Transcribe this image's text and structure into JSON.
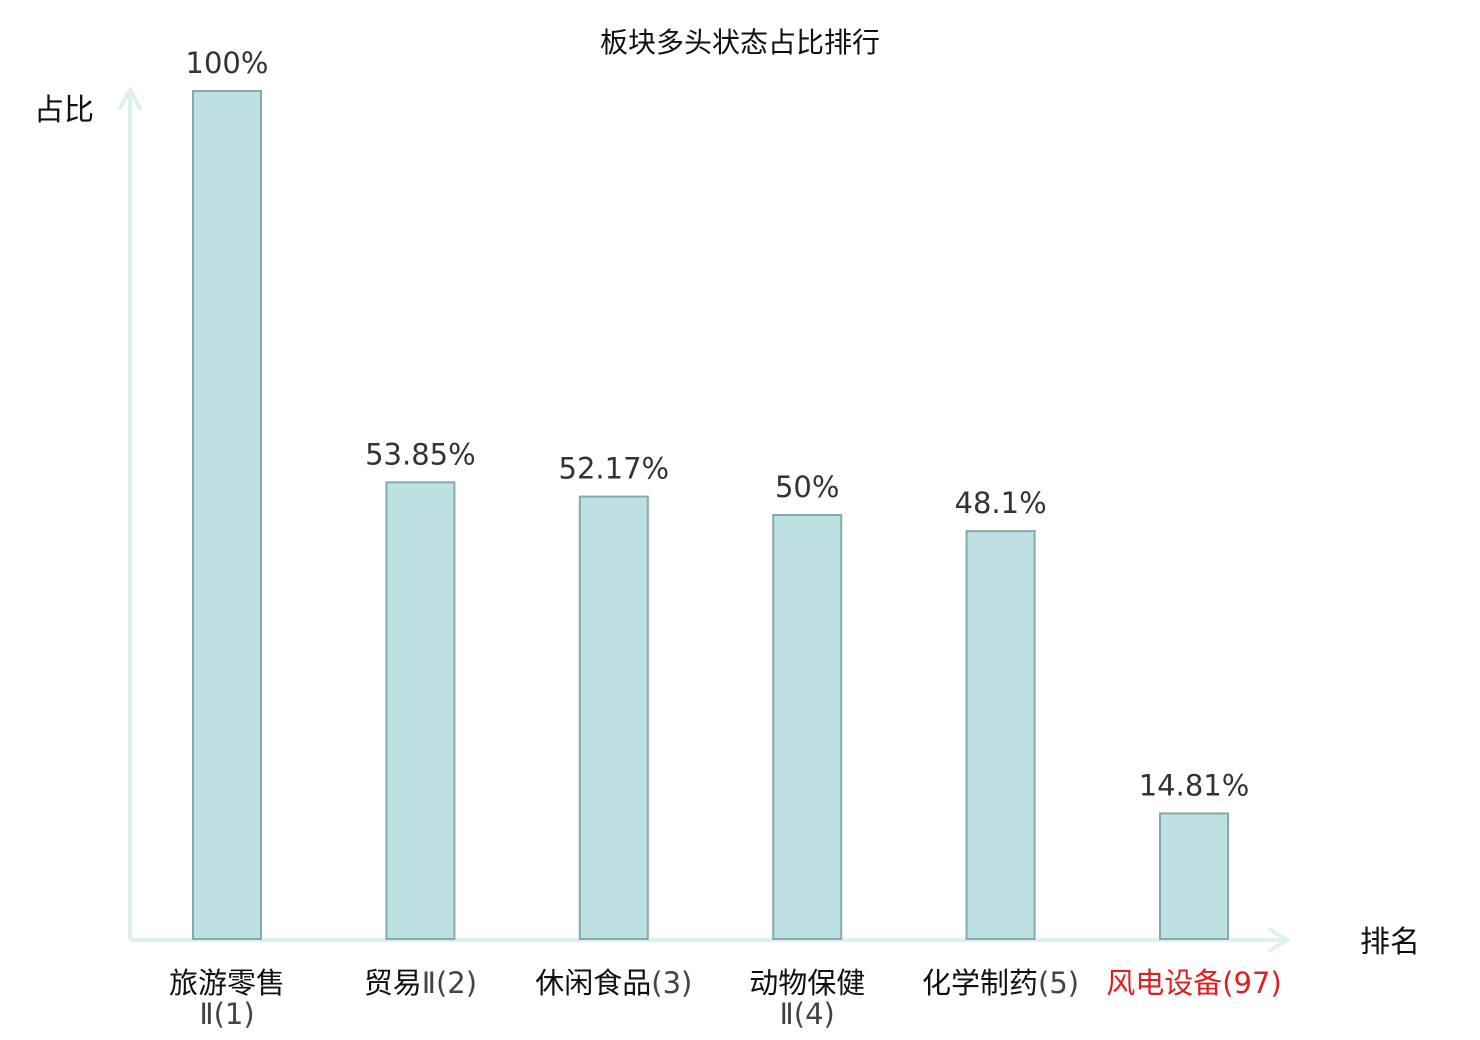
{
  "chart_data": {
    "type": "bar",
    "title": "板块多头状态占比排行",
    "ylabel": "占比",
    "xlabel": "排名",
    "ylim": [
      0,
      100
    ],
    "grid": false,
    "categories": [
      {
        "name": "旅游零售",
        "suffix": "Ⅱ(1)",
        "wrap": true,
        "highlight": false
      },
      {
        "name": "贸易",
        "suffix": "Ⅱ(2)",
        "wrap": false,
        "highlight": false
      },
      {
        "name": "休闲食品",
        "suffix": "(3)",
        "wrap": false,
        "highlight": false
      },
      {
        "name": "动物保健",
        "suffix": "Ⅱ(4)",
        "wrap": true,
        "highlight": false
      },
      {
        "name": "化学制药",
        "suffix": "(5)",
        "wrap": false,
        "highlight": false
      },
      {
        "name": "风电设备",
        "suffix": "(97)",
        "wrap": false,
        "highlight": true
      }
    ],
    "values": [
      100,
      53.85,
      52.17,
      50,
      48.1,
      14.81
    ],
    "value_labels": [
      "100%",
      "53.85%",
      "52.17%",
      "50%",
      "48.1%",
      "14.81%"
    ],
    "colors": {
      "bar_fill": "#bde0e3",
      "bar_stroke": "#86a9ab",
      "axis": "#dff1ee",
      "highlight": "#e02020"
    }
  }
}
